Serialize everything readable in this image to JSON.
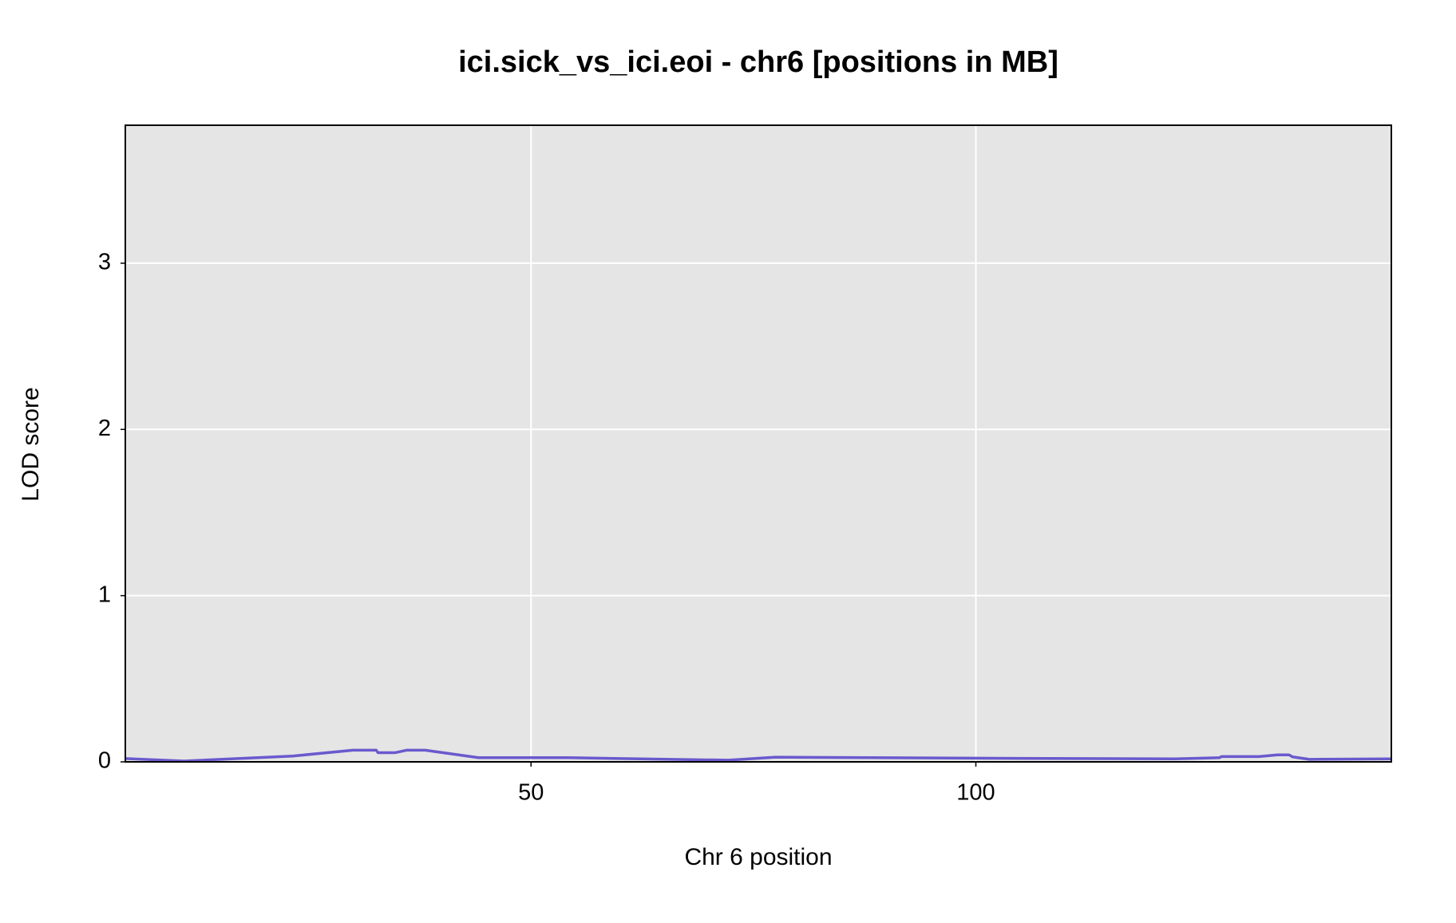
{
  "chart_data": {
    "type": "line",
    "title": "ici.sick_vs_ici.eoi - chr6 [positions in MB]",
    "xlabel": "Chr 6 position",
    "ylabel": "LOD score",
    "x": [
      4.4,
      11.0,
      23.2,
      30.0,
      32.6,
      32.8,
      34.7,
      36.0,
      38.1,
      44.1,
      54.2,
      72.2,
      77.5,
      99.9,
      122.4,
      127.4,
      127.6,
      131.8,
      133.9,
      135.2,
      135.6,
      137.5,
      146.7
    ],
    "series": [
      {
        "color": "#6a5acd",
        "values": [
          0.02,
          0.005,
          0.035,
          0.07,
          0.07,
          0.055,
          0.055,
          0.07,
          0.07,
          0.025,
          0.025,
          0.01,
          0.028,
          0.022,
          0.018,
          0.025,
          0.032,
          0.032,
          0.042,
          0.042,
          0.03,
          0.015,
          0.018
        ]
      }
    ],
    "xlim": [
      4.4,
      146.7
    ],
    "xticks": [
      50,
      100
    ],
    "ylim": [
      0,
      3.83
    ],
    "yticks": [
      0,
      1,
      2,
      3
    ],
    "grid": true
  }
}
